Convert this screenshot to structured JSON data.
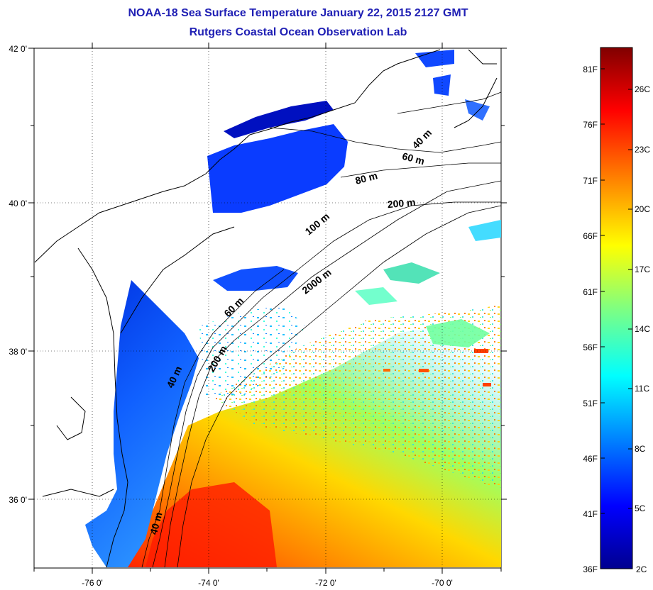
{
  "header": {
    "title": "NOAA-18 Sea Surface Temperature January 22, 2015 2127 GMT",
    "subtitle": "Rutgers Coastal Ocean Observation Lab"
  },
  "map": {
    "lat_ticks": [
      "42 0'",
      "40 0'",
      "38 0'",
      "36 0'"
    ],
    "lon_ticks": [
      "-76 0'",
      "-74 0'",
      "-72 0'",
      "-70 0'"
    ],
    "contour_labels": [
      "40 m",
      "60 m",
      "80 m",
      "200 m",
      "100 m",
      "2000 m",
      "60 m",
      "200 m",
      "40 m",
      "40 m"
    ]
  },
  "colorbar": {
    "fahrenheit": [
      "81F",
      "76F",
      "71F",
      "66F",
      "61F",
      "56F",
      "51F",
      "46F",
      "41F",
      "36F"
    ],
    "celsius": [
      "26C",
      "23C",
      "20C",
      "17C",
      "14C",
      "11C",
      "8C",
      "5C",
      "2C"
    ],
    "colors": [
      "#00008f",
      "#0000ff",
      "#0080ff",
      "#00ffff",
      "#80ff80",
      "#ffff00",
      "#ff8000",
      "#ff0000",
      "#800000"
    ]
  }
}
